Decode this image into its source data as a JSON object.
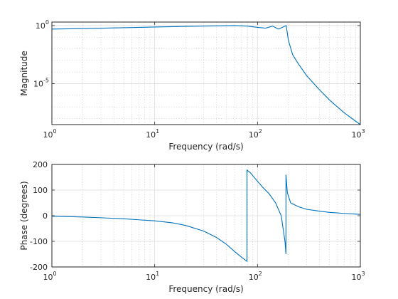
{
  "chart_data": [
    {
      "type": "line",
      "xscale": "log",
      "yscale": "log",
      "xlim": [
        1,
        1000
      ],
      "ylim": [
        3e-09,
        2
      ],
      "xlabel": "Frequency (rad/s)",
      "ylabel": "Magnitude",
      "xticks": [
        {
          "base": "10",
          "exp": "0",
          "value": 1
        },
        {
          "base": "10",
          "exp": "1",
          "value": 10
        },
        {
          "base": "10",
          "exp": "2",
          "value": 100
        },
        {
          "base": "10",
          "exp": "3",
          "value": 1000
        }
      ],
      "yticks": [
        {
          "base": "10",
          "exp": "0",
          "value": 1
        },
        {
          "base": "10",
          "exp": "-5",
          "value": 1e-05
        }
      ],
      "grid": true,
      "series": [
        {
          "color": "#0072bd",
          "x": [
            1,
            2,
            5,
            10,
            20,
            40,
            60,
            80,
            100,
            120,
            140,
            160,
            180,
            190,
            200,
            220,
            250,
            300,
            400,
            500,
            700,
            1000
          ],
          "y": [
            0.5,
            0.55,
            0.65,
            0.75,
            0.85,
            0.95,
            1.0,
            0.9,
            0.7,
            0.6,
            0.9,
            0.5,
            0.8,
            1.0,
            0.05,
            0.003,
            0.0005,
            5e-05,
            3e-06,
            4e-07,
            3e-08,
            3e-09
          ]
        }
      ]
    },
    {
      "type": "line",
      "xscale": "log",
      "xlim": [
        1,
        1000
      ],
      "ylim": [
        -200,
        200
      ],
      "xlabel": "Frequency (rad/s)",
      "ylabel": "Phase (degrees)",
      "xticks": [
        {
          "base": "10",
          "exp": "0",
          "value": 1
        },
        {
          "base": "10",
          "exp": "1",
          "value": 10
        },
        {
          "base": "10",
          "exp": "2",
          "value": 100
        },
        {
          "base": "10",
          "exp": "3",
          "value": 1000
        }
      ],
      "yticks": [
        {
          "label": "200",
          "value": 200
        },
        {
          "label": "100",
          "value": 100
        },
        {
          "label": "0",
          "value": 0
        },
        {
          "label": "-100",
          "value": -100
        },
        {
          "label": "-200",
          "value": -200
        }
      ],
      "grid": true,
      "series": [
        {
          "color": "#0072bd",
          "x": [
            1,
            2,
            3,
            5,
            7,
            10,
            15,
            20,
            30,
            40,
            50,
            60,
            70,
            79,
            79.01,
            85,
            95,
            110,
            130,
            150,
            170,
            185,
            189,
            189.01,
            195,
            210,
            250,
            300,
            400,
            500,
            700,
            1000
          ],
          "y": [
            -2,
            -5,
            -8,
            -12,
            -16,
            -20,
            -28,
            -38,
            -60,
            -85,
            -112,
            -140,
            -162,
            -178,
            178,
            168,
            145,
            115,
            85,
            50,
            0,
            -100,
            -150,
            160,
            90,
            50,
            35,
            25,
            18,
            13,
            9,
            5
          ]
        }
      ]
    }
  ]
}
